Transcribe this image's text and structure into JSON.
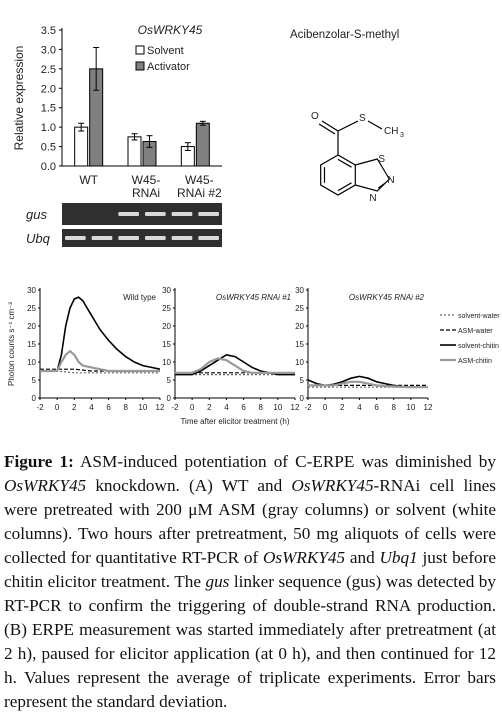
{
  "panel_a": {
    "chart_title": "OsWRKY45",
    "compound_label": "Acibenzolar-S-methyl",
    "structure_labels": [
      "O",
      "S",
      "CH",
      "3",
      "S",
      "N",
      "N"
    ],
    "gel_labels": [
      "gus",
      "Ubq"
    ]
  },
  "panel_b": {
    "xlabel": "Time after elicitor treatment (h)"
  },
  "chart_data": [
    {
      "type": "bar",
      "title": "OsWRKY45",
      "ylabel": "Relative expression",
      "ylim": [
        0,
        3.5
      ],
      "yticks": [
        "0.0",
        "0.5",
        "1.0",
        "1.5",
        "2.0",
        "2.5",
        "3.0",
        "3.5"
      ],
      "categories": [
        "WT",
        "W45-\nRNAi",
        "W45-\nRNAi #2"
      ],
      "category_lines": [
        [
          "WT"
        ],
        [
          "W45-",
          "RNAi"
        ],
        [
          "W45-",
          "RNAi #2"
        ]
      ],
      "series": [
        {
          "name": "Solvent",
          "values": [
            1.0,
            0.75,
            0.5
          ],
          "errors": [
            0.1,
            0.08,
            0.1
          ],
          "color": "#ffffff"
        },
        {
          "name": "Activator",
          "values": [
            2.5,
            0.63,
            1.1
          ],
          "errors": [
            0.55,
            0.15,
            0.05
          ],
          "color": "#808080"
        }
      ],
      "legend": "top-right"
    },
    {
      "type": "line",
      "ylabel": "Photon counts s⁻¹ cm⁻²",
      "xlabel": "Time after elicitor treatment (h)",
      "xticks": [
        "-2",
        "0",
        "2",
        "4",
        "6",
        "8",
        "10",
        "12"
      ],
      "yticks": [
        "0",
        "5",
        "10",
        "15",
        "20",
        "25",
        "30"
      ],
      "ylim": [
        0,
        30
      ],
      "xlim": [
        -2,
        12
      ],
      "legend_entries": [
        "solvent-water",
        "ASM-water",
        "solvent-chitin",
        "ASM-chitin"
      ],
      "panels": [
        {
          "title": "Wild type",
          "series": [
            {
              "name": "solvent-water",
              "x": [
                -2,
                0,
                2,
                4,
                6,
                8,
                10,
                12
              ],
              "y": [
                7.5,
                7.5,
                7,
                7,
                7,
                7,
                7,
                7
              ]
            },
            {
              "name": "ASM-water",
              "x": [
                -2,
                0,
                2,
                4,
                6,
                8,
                10,
                12
              ],
              "y": [
                8,
                8,
                8,
                7.5,
                7.5,
                7.5,
                7.5,
                7.5
              ]
            },
            {
              "name": "solvent-chitin",
              "x": [
                -2,
                -1,
                0,
                0.5,
                1,
                1.5,
                2,
                2.5,
                3,
                3.5,
                4,
                5,
                6,
                7,
                8,
                9,
                10,
                11,
                12
              ],
              "y": [
                7.5,
                7.5,
                7.5,
                12,
                20,
                25,
                27.5,
                28,
                27,
                25,
                23,
                19,
                16,
                13.5,
                11.5,
                10,
                9,
                8.5,
                8
              ]
            },
            {
              "name": "ASM-chitin",
              "x": [
                -2,
                -1,
                0,
                0.5,
                1,
                1.5,
                2,
                2.5,
                3,
                4,
                5,
                6,
                7,
                8,
                10,
                12
              ],
              "y": [
                7.5,
                7.5,
                7.5,
                10,
                12,
                13,
                12,
                10,
                9,
                8.5,
                8,
                7.5,
                7.5,
                7.5,
                7.5,
                7.5
              ]
            }
          ]
        },
        {
          "title": "OsWRKY45 RNAi #1",
          "series": [
            {
              "name": "solvent-water",
              "x": [
                -2,
                0,
                2,
                4,
                6,
                8,
                10,
                12
              ],
              "y": [
                6.5,
                6.5,
                6.5,
                6.5,
                6.5,
                6.5,
                6.5,
                6.5
              ]
            },
            {
              "name": "ASM-water",
              "x": [
                -2,
                0,
                2,
                4,
                6,
                8,
                10,
                12
              ],
              "y": [
                7,
                7,
                7,
                7,
                7,
                7,
                7,
                7
              ]
            },
            {
              "name": "solvent-chitin",
              "x": [
                -2,
                0,
                1,
                2,
                3,
                4,
                5,
                6,
                7,
                8,
                9,
                10,
                12
              ],
              "y": [
                6.5,
                6.5,
                7.5,
                9,
                10.5,
                12,
                11.5,
                10,
                8.5,
                7.5,
                7,
                6.5,
                6.5
              ]
            },
            {
              "name": "ASM-chitin",
              "x": [
                -2,
                0,
                1,
                2,
                3,
                4,
                5,
                6,
                7,
                8,
                10,
                12
              ],
              "y": [
                7,
                7,
                8,
                10,
                11,
                10.5,
                9,
                7.5,
                7,
                7,
                7,
                7
              ]
            }
          ]
        },
        {
          "title": "OsWRKY45 RNAi #2",
          "series": [
            {
              "name": "solvent-water",
              "x": [
                -2,
                0,
                2,
                4,
                6,
                8,
                10,
                12
              ],
              "y": [
                3,
                3,
                3,
                3,
                3,
                3,
                3,
                3
              ]
            },
            {
              "name": "ASM-water",
              "x": [
                -2,
                0,
                2,
                4,
                6,
                8,
                10,
                12
              ],
              "y": [
                3.5,
                3.5,
                3.5,
                3.5,
                3.5,
                3.5,
                3.5,
                3.5
              ]
            },
            {
              "name": "solvent-chitin",
              "x": [
                -2,
                -1.5,
                -1,
                0,
                1,
                2,
                3,
                4,
                5,
                6,
                7,
                8,
                9,
                10,
                12
              ],
              "y": [
                5,
                4.5,
                4,
                3.5,
                3.8,
                4.5,
                5.5,
                6,
                5.5,
                4.5,
                4,
                3.5,
                3.2,
                3,
                3
              ]
            },
            {
              "name": "ASM-chitin",
              "x": [
                -2,
                0,
                1,
                2,
                3,
                4,
                5,
                6,
                7,
                8,
                10,
                12
              ],
              "y": [
                3.5,
                3.5,
                3.5,
                4,
                4.5,
                4.5,
                4,
                3.5,
                3.3,
                3.2,
                3,
                3
              ]
            }
          ]
        }
      ],
      "legend": "right"
    }
  ],
  "caption": {
    "lead": "Figure 1:",
    "parts": [
      {
        "t": " ASM-induced potentiation of C-ERPE was diminished by "
      },
      {
        "t": "OsWRKY45",
        "i": true
      },
      {
        "t": " knockdown. (A) WT and "
      },
      {
        "t": "OsWRKY45",
        "i": true
      },
      {
        "t": "-RNAi cell lines were pretreated with 200 μM ASM (gray columns) or solvent (white columns). Two hours after pretreatment, 50 mg aliquots of cells were collected for quantitative RT-PCR of "
      },
      {
        "t": "OsWRKY45",
        "i": true
      },
      {
        "t": " and "
      },
      {
        "t": "Ubq1",
        "i": true
      },
      {
        "t": " just before chitin elicitor treatment. The "
      },
      {
        "t": "gus",
        "i": true
      },
      {
        "t": " linker sequence (gus) was detected by RT-PCR to confirm the triggering of double-strand RNA production. (B) ERPE measurement was started immediately after pretreatment (at 2 h), paused for elicitor application (at 0 h), and then continued for 12 h. Values represent the average of triplicate experiments. Error bars represent the standard deviation."
      }
    ]
  }
}
